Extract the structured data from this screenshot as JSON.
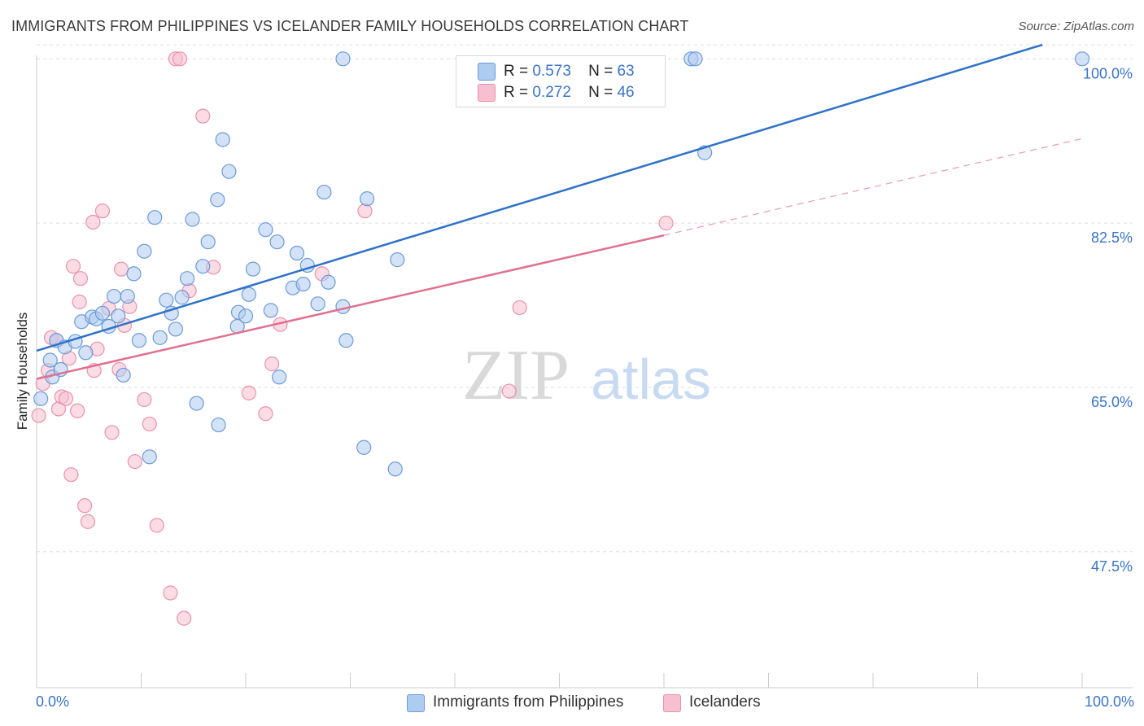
{
  "title": "IMMIGRANTS FROM PHILIPPINES VS ICELANDER FAMILY HOUSEHOLDS CORRELATION CHART",
  "source": "Source: ZipAtlas.com",
  "watermark": {
    "zip": "ZIP",
    "atlas": "atlas"
  },
  "legend_top": [
    {
      "r_label": "R =",
      "r_value": "0.573",
      "n_label": "N =",
      "n_value": "63"
    },
    {
      "r_label": "R =",
      "r_value": "0.272",
      "n_label": "N =",
      "n_value": "46"
    }
  ],
  "legend_bottom": [
    {
      "label": "Immigrants from Philippines"
    },
    {
      "label": "Icelanders"
    }
  ],
  "colors": {
    "blue_fill": "#aecbf0",
    "blue_stroke": "#6b9bd8",
    "blue_line": "#2f72c8",
    "pink_fill": "#f7bfd0",
    "pink_stroke": "#e892ad",
    "pink_line": "#e0708f",
    "tick_text": "#3a74c9",
    "grid": "#dddddd"
  },
  "chart_data": {
    "type": "scatter",
    "title": "IMMIGRANTS FROM PHILIPPINES VS ICELANDER FAMILY HOUSEHOLDS CORRELATION CHART",
    "xlabel": "",
    "ylabel": "Family Households",
    "xlim": [
      0,
      100
    ],
    "ylim": [
      33,
      101.5
    ],
    "x_tick_labels": [
      "0.0%",
      "100.0%"
    ],
    "y_ticks": [
      47.5,
      65.0,
      82.5,
      100.0
    ],
    "y_tick_labels": [
      "47.5%",
      "65.0%",
      "82.5%",
      "100.0%"
    ],
    "grid": true,
    "legend_position": "top-center",
    "series": [
      {
        "name": "Immigrants from Philippines",
        "color": "#aecbf0",
        "trend": {
          "x": [
            0,
            96.2
          ],
          "y": [
            68.9,
            101.5
          ]
        },
        "points": [
          [
            0.4,
            63.8
          ],
          [
            1.3,
            67.9
          ],
          [
            1.5,
            66.1
          ],
          [
            1.9,
            70.0
          ],
          [
            2.3,
            66.9
          ],
          [
            2.7,
            69.3
          ],
          [
            3.7,
            69.9
          ],
          [
            4.3,
            72.0
          ],
          [
            4.7,
            68.7
          ],
          [
            5.3,
            72.5
          ],
          [
            5.7,
            72.3
          ],
          [
            6.3,
            72.9
          ],
          [
            6.9,
            71.5
          ],
          [
            7.4,
            74.7
          ],
          [
            7.8,
            72.6
          ],
          [
            8.3,
            66.3
          ],
          [
            8.7,
            74.7
          ],
          [
            9.3,
            77.1
          ],
          [
            9.8,
            70.0
          ],
          [
            10.3,
            79.5
          ],
          [
            10.8,
            57.6
          ],
          [
            11.3,
            83.1
          ],
          [
            11.8,
            70.3
          ],
          [
            12.4,
            74.3
          ],
          [
            12.9,
            72.9
          ],
          [
            13.3,
            71.2
          ],
          [
            13.9,
            74.6
          ],
          [
            14.4,
            76.6
          ],
          [
            14.9,
            82.9
          ],
          [
            15.3,
            63.3
          ],
          [
            15.9,
            77.9
          ],
          [
            16.4,
            80.5
          ],
          [
            17.3,
            85.0
          ],
          [
            17.4,
            61.0
          ],
          [
            17.8,
            91.4
          ],
          [
            18.4,
            88.0
          ],
          [
            19.2,
            71.5
          ],
          [
            19.3,
            73.0
          ],
          [
            20.0,
            72.6
          ],
          [
            20.3,
            74.9
          ],
          [
            20.7,
            77.6
          ],
          [
            21.9,
            81.8
          ],
          [
            22.4,
            73.2
          ],
          [
            23.0,
            80.5
          ],
          [
            23.2,
            66.1
          ],
          [
            24.5,
            75.6
          ],
          [
            24.9,
            79.3
          ],
          [
            25.5,
            76.0
          ],
          [
            25.9,
            78.0
          ],
          [
            26.9,
            73.9
          ],
          [
            27.5,
            85.8
          ],
          [
            27.9,
            76.2
          ],
          [
            29.3,
            73.6
          ],
          [
            29.6,
            70.0
          ],
          [
            31.3,
            58.6
          ],
          [
            31.6,
            85.1
          ],
          [
            34.3,
            56.3
          ],
          [
            34.5,
            78.6
          ],
          [
            29.3,
            100.0
          ],
          [
            62.6,
            100.0
          ],
          [
            63.9,
            90.0
          ],
          [
            63.0,
            100.0
          ],
          [
            100.0,
            100.0
          ]
        ]
      },
      {
        "name": "Icelanders",
        "color": "#f7bfd0",
        "trend": {
          "x": [
            0,
            60.0
          ],
          "y": [
            65.9,
            81.2
          ]
        },
        "trend_extension": {
          "x": [
            60.0,
            100.0
          ],
          "y": [
            81.2,
            91.5
          ]
        },
        "points": [
          [
            0.2,
            62.0
          ],
          [
            0.6,
            65.4
          ],
          [
            1.1,
            66.8
          ],
          [
            1.4,
            70.3
          ],
          [
            1.9,
            70.0
          ],
          [
            2.1,
            62.7
          ],
          [
            2.4,
            64.0
          ],
          [
            2.8,
            63.8
          ],
          [
            3.1,
            68.1
          ],
          [
            3.3,
            55.7
          ],
          [
            3.5,
            77.9
          ],
          [
            3.9,
            62.5
          ],
          [
            4.1,
            74.1
          ],
          [
            4.2,
            76.6
          ],
          [
            4.6,
            52.4
          ],
          [
            4.9,
            50.7
          ],
          [
            5.4,
            82.6
          ],
          [
            5.5,
            66.8
          ],
          [
            5.8,
            69.1
          ],
          [
            6.3,
            83.8
          ],
          [
            6.9,
            73.4
          ],
          [
            7.2,
            60.2
          ],
          [
            7.9,
            66.9
          ],
          [
            8.1,
            77.6
          ],
          [
            8.4,
            71.6
          ],
          [
            8.9,
            73.6
          ],
          [
            9.4,
            57.1
          ],
          [
            10.3,
            63.7
          ],
          [
            10.8,
            61.1
          ],
          [
            11.5,
            50.3
          ],
          [
            12.8,
            43.1
          ],
          [
            13.3,
            100.0
          ],
          [
            13.7,
            100.0
          ],
          [
            14.1,
            40.4
          ],
          [
            14.6,
            75.3
          ],
          [
            15.9,
            93.9
          ],
          [
            16.9,
            77.8
          ],
          [
            20.3,
            64.4
          ],
          [
            21.9,
            62.2
          ],
          [
            22.5,
            67.5
          ],
          [
            23.3,
            71.7
          ],
          [
            27.3,
            77.1
          ],
          [
            31.4,
            83.8
          ],
          [
            46.2,
            73.5
          ],
          [
            45.2,
            64.6
          ],
          [
            60.2,
            82.5
          ]
        ]
      }
    ]
  }
}
